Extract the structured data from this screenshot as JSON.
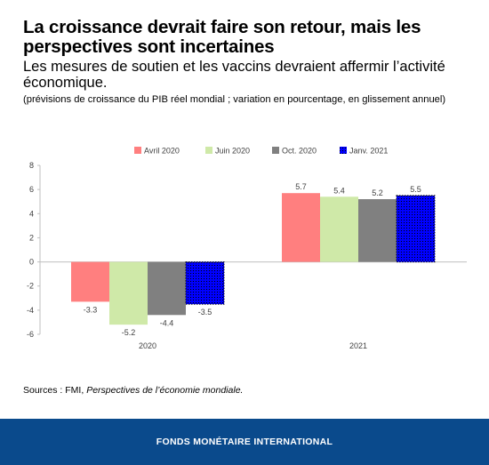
{
  "header": {
    "title": "La croissance devrait faire son retour, mais les perspectives sont incertaines",
    "subtitle": "Les mesures de soutien et les vaccins devraient affermir l’activité économique.",
    "note": "(prévisions de croissance du PIB réel mondial ; variation en pourcentage, en glissement annuel)"
  },
  "source": {
    "prefix": "Sources : FMI, ",
    "publication": "Perspectives de l’économie mondiale."
  },
  "footer": {
    "org": "FONDS MONÉTAIRE INTERNATIONAL"
  },
  "chart_data": {
    "type": "bar",
    "categories": [
      "2020",
      "2021"
    ],
    "series": [
      {
        "name": "Avril 2020",
        "color": "#ff7f7f",
        "values": [
          -3.3,
          5.7
        ],
        "labels": [
          "-3.3",
          "5.7"
        ]
      },
      {
        "name": "Juin 2020",
        "color": "#cfe9a8",
        "values": [
          -5.2,
          5.4
        ],
        "labels": [
          "-5.2",
          "5.4"
        ]
      },
      {
        "name": "Oct. 2020",
        "color": "#808080",
        "values": [
          -4.4,
          5.2
        ],
        "labels": [
          "-4.4",
          "5.2"
        ]
      },
      {
        "name": "Janv. 2021",
        "color": "#0000ff",
        "values": [
          -3.5,
          5.5
        ],
        "labels": [
          "-3.5",
          "5.5"
        ]
      }
    ],
    "yticks": [
      8,
      6,
      4,
      2,
      0,
      -2,
      -4,
      -6
    ],
    "ylim": [
      -6,
      8
    ],
    "legend_position": "top",
    "grid": false
  }
}
